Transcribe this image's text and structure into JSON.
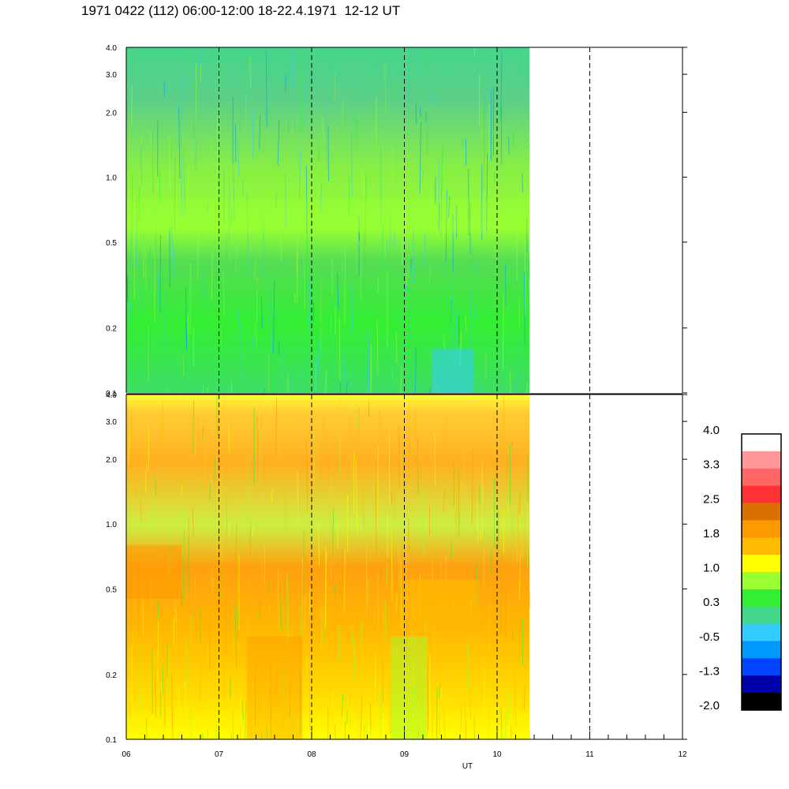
{
  "header": {
    "title": "1971 0422 (112) 06:00-12:00 18-22.4.1971  12-12 UT"
  },
  "chart_data": {
    "type": "heatmap",
    "title": "1971 0422 (112) 06:00-12:00 18-22.4.1971  12-12 UT",
    "xlabel": "UT",
    "x_tick_labels": [
      "06",
      "07",
      "08",
      "09",
      "10",
      "11",
      "12"
    ],
    "xlim_hours": [
      6,
      12
    ],
    "data_end_hour": 10.35,
    "vertical_dashed_lines_hours": [
      7,
      8,
      9,
      10,
      11
    ],
    "panels": [
      {
        "id": "upper",
        "y_scale": "log",
        "ylim": [
          0.1,
          4.0
        ],
        "y_tick_labels": [
          "4.0",
          "3.0",
          "2.0",
          "1.0",
          "0.5",
          "0.2",
          "0.1"
        ],
        "y_tick_values": [
          4.0,
          3.0,
          2.0,
          1.0,
          0.5,
          0.2,
          0.1
        ],
        "dominant_levels": [
          "-0.5",
          "0.3",
          "1.0"
        ]
      },
      {
        "id": "lower",
        "y_scale": "log",
        "ylim": [
          0.1,
          4.0
        ],
        "y_tick_labels": [
          "4.0",
          "3.0",
          "2.0",
          "1.0",
          "0.5",
          "0.2",
          "0.1"
        ],
        "y_tick_values": [
          4.0,
          3.0,
          2.0,
          1.0,
          0.5,
          0.2,
          0.1
        ],
        "dominant_levels": [
          "1.0",
          "1.8",
          "0.3"
        ]
      }
    ],
    "colorbar": {
      "labels": [
        "4.0",
        "3.3",
        "2.5",
        "1.8",
        "1.0",
        "0.3",
        "-0.5",
        "-1.3",
        "-2.0"
      ],
      "colors_top_to_bottom": [
        "#ffffff",
        "#ff9999",
        "#ff6666",
        "#ff3333",
        "#d97000",
        "#ff9900",
        "#ffbb00",
        "#ffff00",
        "#99ff33",
        "#33ee33",
        "#44d68a",
        "#33ccff",
        "#0099ff",
        "#0044ff",
        "#0000aa",
        "#000000"
      ]
    }
  }
}
